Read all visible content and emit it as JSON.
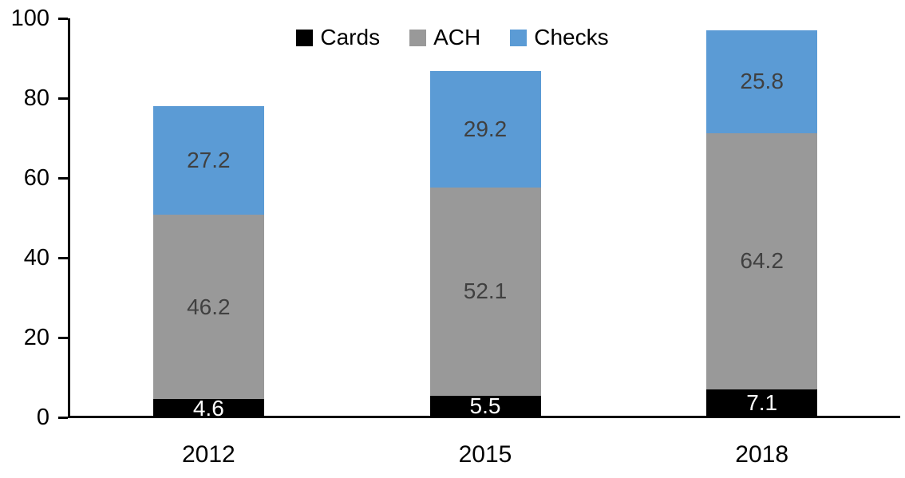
{
  "chart_data": {
    "type": "bar",
    "stacked": true,
    "title": "",
    "xlabel": "",
    "ylabel": "",
    "categories": [
      "2012",
      "2015",
      "2018"
    ],
    "series": [
      {
        "name": "Cards",
        "color": "#000000",
        "label_color": "#FFFFFF",
        "values": [
          4.6,
          5.5,
          7.1
        ]
      },
      {
        "name": "ACH",
        "color": "#999999",
        "label_color": "#404040",
        "values": [
          46.2,
          52.1,
          64.2
        ]
      },
      {
        "name": "Checks",
        "color": "#5B9BD5",
        "label_color": "#404040",
        "values": [
          27.2,
          29.2,
          25.8
        ]
      }
    ],
    "ylim": [
      0,
      100
    ],
    "yticks": [
      "0",
      "20",
      "40",
      "60",
      "80",
      "100"
    ],
    "grid": false,
    "legend_position": "top",
    "axis_color": "#000000"
  }
}
